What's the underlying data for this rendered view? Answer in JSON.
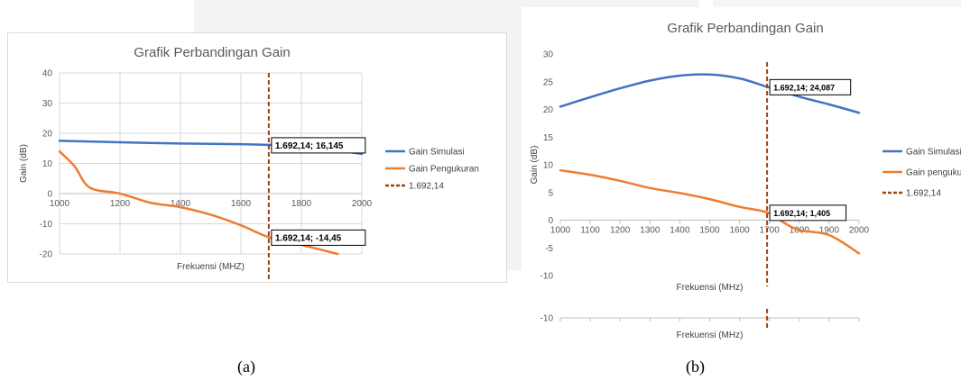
{
  "captions": [
    "(a)",
    "(b)"
  ],
  "chart_data": [
    {
      "type": "line",
      "title": "Grafik Perbandingan Gain",
      "xlabel": "Frekuensi (MHZ)",
      "ylabel": "Gain (dB)",
      "xlim": [
        1000,
        2000
      ],
      "ylim": [
        -20,
        40
      ],
      "xticks": [
        1000,
        1200,
        1400,
        1600,
        1800,
        2000
      ],
      "yticks": [
        -20,
        -10,
        0,
        10,
        20,
        30,
        40
      ],
      "grid": true,
      "legend_position": "right",
      "series": [
        {
          "name": "Gain Simulasi",
          "color": "#4472c4",
          "x": [
            1000,
            1200,
            1400,
            1600,
            1692.14,
            1800,
            2000
          ],
          "y": [
            17.5,
            17.0,
            16.6,
            16.4,
            16.145,
            15.8,
            13.2
          ]
        },
        {
          "name": "Gain Pengukuran",
          "color": "#ed7d31",
          "x": [
            1000,
            1050,
            1100,
            1200,
            1300,
            1400,
            1500,
            1600,
            1692.14,
            1800,
            1900,
            1920
          ],
          "y": [
            14,
            9,
            2,
            0,
            -3,
            -4.5,
            -7,
            -10.5,
            -14.45,
            -17,
            -19.5,
            -20
          ]
        },
        {
          "name": "1.692,14",
          "color": "#a0420f",
          "dashed": true,
          "vertical_at": 1692.14
        }
      ],
      "annotations": [
        {
          "text": "1.692,14; 16,145",
          "x": 1692.14,
          "y": 16.145
        },
        {
          "text": "1.692,14; -14,45",
          "x": 1692.14,
          "y": -14.45
        }
      ]
    },
    {
      "type": "line",
      "title": "Grafik Perbandingan Gain",
      "xlabel": "Frekuensi (MHz)",
      "ylabel": "Gain (dB)",
      "xlim": [
        1000,
        2000
      ],
      "ylim": [
        -10,
        30
      ],
      "xticks": [
        1000,
        1100,
        1200,
        1300,
        1400,
        1500,
        1600,
        1700,
        1800,
        1900,
        2000
      ],
      "yticks": [
        -10,
        -5,
        0,
        5,
        10,
        15,
        20,
        25,
        30
      ],
      "grid": false,
      "legend_position": "right",
      "series": [
        {
          "name": "Gain Simulasi",
          "color": "#4472c4",
          "x": [
            1000,
            1100,
            1200,
            1300,
            1400,
            1500,
            1600,
            1692.14,
            1800,
            1900,
            2000
          ],
          "y": [
            20.5,
            22.2,
            23.8,
            25.2,
            26.1,
            26.3,
            25.6,
            24.087,
            22.3,
            20.9,
            19.4
          ]
        },
        {
          "name": "Gain pengukuran",
          "color": "#ed7d31",
          "x": [
            1000,
            1100,
            1200,
            1300,
            1400,
            1500,
            1600,
            1692.14,
            1750,
            1800,
            1900,
            2000
          ],
          "y": [
            9,
            8.2,
            7.1,
            5.8,
            4.9,
            3.8,
            2.4,
            1.405,
            -0.5,
            -1.8,
            -2.7,
            -6
          ]
        },
        {
          "name": "1.692,14",
          "color": "#a0420f",
          "dashed": true,
          "vertical_at": 1692.14
        }
      ],
      "annotations": [
        {
          "text": "1.692,14; 24,087",
          "x": 1692.14,
          "y": 24.087
        },
        {
          "text": "1.692,14; 1,405",
          "x": 1692.14,
          "y": 1.405
        }
      ],
      "duplicate_axis_strip": {
        "ylabel": "Gain (dB)",
        "ytick": "-10",
        "xlabel": "Frekuensi (MHz)"
      }
    }
  ]
}
